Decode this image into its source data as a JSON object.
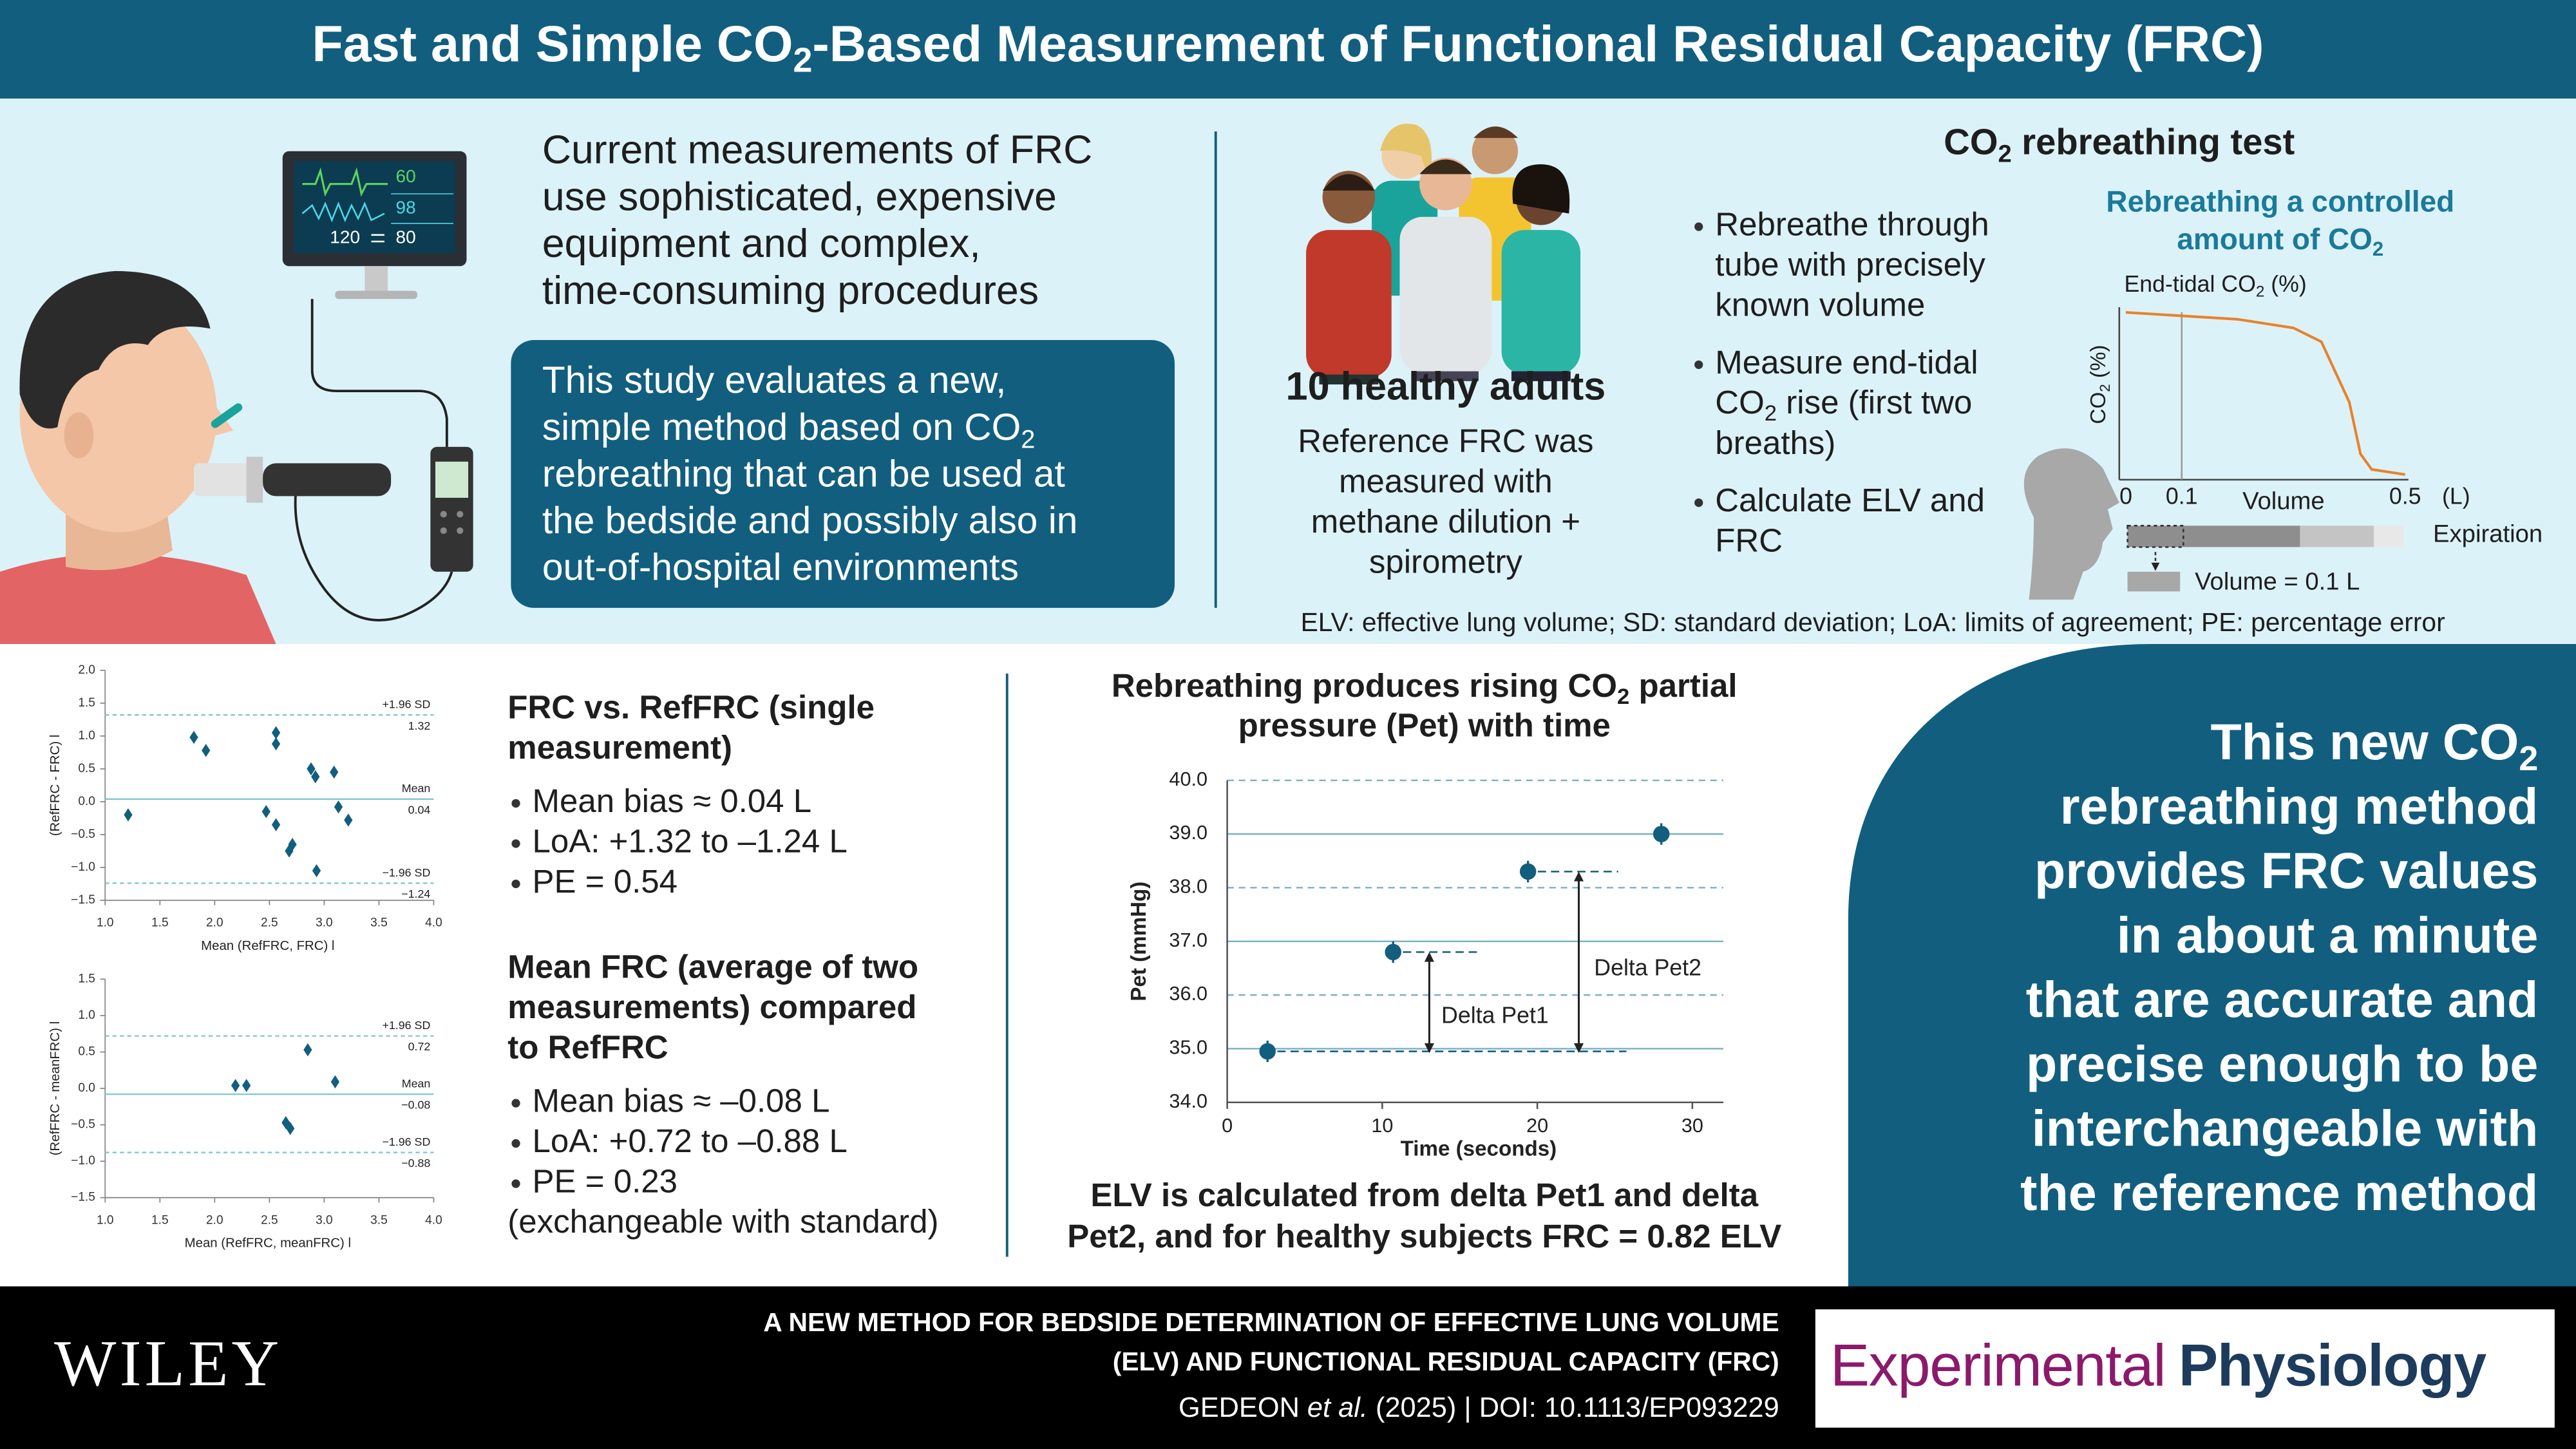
{
  "header": {
    "title": [
      "Fast and Simple CO",
      "2",
      "-Based Measurement of Functional Residual Capacity (FRC)"
    ]
  },
  "intro": {
    "problem": [
      "Current measurements of FRC",
      "use sophisticated, expensive",
      "equipment and complex,",
      "time-consuming procedures"
    ],
    "study": [
      "This study evaluates a new,",
      [
        "simple method based on CO",
        "2"
      ],
      "rebreathing that can be used at",
      "the bedside and possibly also in",
      "out-of-hospital environments"
    ]
  },
  "monitor": [
    "60",
    "98",
    "120",
    "80"
  ],
  "participants": {
    "title": "10 healthy adults",
    "text": [
      "Reference FRC was",
      "measured with",
      "methane dilution +",
      "spirometry"
    ]
  },
  "rebreathing_test": {
    "title": [
      "CO",
      "2",
      " rebreathing test"
    ],
    "bullets": [
      [
        "Rebreathe through",
        "tube with precisely",
        "known volume"
      ],
      [
        "Measure end-tidal",
        [
          "CO",
          "2",
          " rise (first two"
        ],
        "breaths)"
      ],
      [
        "Calculate ELV and",
        "FRC"
      ]
    ]
  },
  "co2_curve": {
    "title": [
      "Rebreathing a controlled",
      [
        "amount of CO",
        "2"
      ]
    ],
    "chart_title": [
      "End-tidal CO",
      "2",
      " (%)"
    ],
    "y_label": [
      "CO",
      "2",
      " (%)"
    ],
    "x_label": "Volume",
    "x_unit": "(L)",
    "x": [
      0,
      0.1,
      0.2,
      0.3,
      0.35,
      0.4,
      0.42,
      0.44,
      0.5
    ],
    "values": [
      97,
      95,
      93,
      88,
      80,
      45,
      15,
      6,
      3
    ],
    "xlim": [
      0,
      0.5
    ],
    "ylim": [
      0,
      100
    ],
    "xticks": [
      0,
      0.1,
      0.5
    ],
    "color": "#e8822a",
    "expiration": "Expiration",
    "volume_note": "Volume = 0.1 L"
  },
  "abbreviations": "ELV: effective lung volume; SD: standard deviation; LoA: limits of agreement; PE: percentage error",
  "bland_altman": [
    {
      "y_label": "(RefFRC - FRC) l",
      "x_label": "Mean (RefFRC, FRC) l",
      "x": [
        1.21,
        1.81,
        1.92,
        2.56,
        2.56,
        2.47,
        2.56,
        2.68,
        2.71,
        2.88,
        2.92,
        3.09,
        3.13,
        3.22,
        2.93
      ],
      "y": [
        -0.2,
        0.98,
        0.78,
        1.05,
        0.88,
        -0.15,
        -0.35,
        -0.75,
        -0.65,
        0.5,
        0.38,
        0.45,
        -0.08,
        -0.28,
        -1.05
      ],
      "xlim": [
        1,
        4
      ],
      "ylim": [
        -1.5,
        2
      ],
      "xticks": [
        {
          "value": 1,
          "label": "1.0"
        },
        1.5,
        {
          "value": 2,
          "label": "2.0"
        },
        2.5,
        {
          "value": 3,
          "label": "3.0"
        },
        3.5,
        {
          "value": 4,
          "label": "4.0"
        }
      ],
      "yticks": [
        {
          "value": 2,
          "label": "2.0"
        },
        1.5,
        {
          "value": 1,
          "label": "1.0"
        },
        0.5,
        {
          "value": 0,
          "label": "0.0"
        },
        {
          "value": -0.5,
          "label": "−0.5"
        },
        {
          "value": -1,
          "label": "−1.0"
        },
        {
          "value": -1.5,
          "label": "−1.5"
        }
      ],
      "lines": [
        {
          "name": "+1.96 SD",
          "value": 1.32,
          "dashed": true
        },
        {
          "name": "Mean",
          "value": 0.04,
          "dashed": false
        },
        {
          "name": "−1.96 SD",
          "value": -1.24,
          "label": "−1.24",
          "dashed": true
        }
      ],
      "color": "#125e7f"
    },
    {
      "y_label": "(RefFRC - meanFRC) l",
      "x_label": "Mean (RefFRC, meanFRC) l",
      "x": [
        2.19,
        2.29,
        2.85,
        3.1,
        2.65,
        2.69
      ],
      "y": [
        0.04,
        0.04,
        0.53,
        0.09,
        -0.47,
        -0.55
      ],
      "xlim": [
        1,
        4
      ],
      "ylim": [
        -1.5,
        1.5
      ],
      "xticks": [
        {
          "value": 1,
          "label": "1.0"
        },
        1.5,
        {
          "value": 2,
          "label": "2.0"
        },
        2.5,
        {
          "value": 3,
          "label": "3.0"
        },
        3.5,
        {
          "value": 4,
          "label": "4.0"
        }
      ],
      "yticks": [
        1.5,
        {
          "value": 1,
          "label": "1.0"
        },
        0.5,
        {
          "value": 0,
          "label": "0.0"
        },
        {
          "value": -0.5,
          "label": "−0.5"
        },
        {
          "value": -1,
          "label": "−1.0"
        },
        {
          "value": -1.5,
          "label": "−1.5"
        }
      ],
      "lines": [
        {
          "name": "+1.96 SD",
          "value": 0.72,
          "dashed": true
        },
        {
          "name": "Mean",
          "value": -0.08,
          "label": "−0.08",
          "dashed": false
        },
        {
          "name": "−1.96 SD",
          "value": -0.88,
          "label": "−0.88",
          "dashed": true
        }
      ],
      "color": "#125e7f"
    }
  ],
  "summaries": [
    {
      "title_lines": [
        "FRC vs. RefFRC (single",
        "measurement)"
      ],
      "bullets": [
        "Mean bias ≈ 0.04 L",
        "LoA: +1.32 to –1.24 L",
        "PE = 0.54"
      ]
    },
    {
      "title_lines": [
        "Mean FRC (average of two",
        "measurements) compared",
        "to RefFRC"
      ],
      "bullets": [
        "Mean bias ≈ –0.08 L",
        "LoA: +0.72 to –0.88 L",
        "PE = 0.23"
      ],
      "note": "(exchangeable with standard)"
    }
  ],
  "pet_chart": {
    "title_lines": [
      [
        "Rebreathing produces rising CO",
        "2",
        " partial"
      ],
      "pressure (Pet) with time"
    ],
    "y_label": "Pet (mmHg)",
    "x_label": "Time (seconds)",
    "x": [
      2.6,
      10.7,
      19.4,
      28
    ],
    "values": [
      34.95,
      36.8,
      38.3,
      39.0
    ],
    "errors": [
      0.2,
      0.2,
      0.2,
      0.2
    ],
    "xlim": [
      0,
      32
    ],
    "ylim": [
      34,
      40
    ],
    "xticks": [
      0,
      10,
      20,
      30
    ],
    "yticks": [
      {
        "value": 40,
        "label": "40.0"
      },
      {
        "value": 39,
        "label": "39.0"
      },
      {
        "value": 38,
        "label": "38.0"
      },
      {
        "value": 37,
        "label": "37.0"
      },
      {
        "value": 36,
        "label": "36.0"
      },
      {
        "value": 35,
        "label": "35.0"
      },
      {
        "value": 34,
        "label": "34.0"
      }
    ],
    "grid_dashed": [
      true,
      false,
      true,
      false,
      true,
      false,
      false
    ],
    "color": "#125e7f",
    "delta_labels": [
      "Delta Pet1",
      "Delta Pet2"
    ],
    "caption": [
      "ELV is calculated from delta Pet1 and delta",
      "Pet2, and for healthy subjects FRC = 0.82 ELV"
    ]
  },
  "conclusion": [
    [
      "This new CO",
      "2"
    ],
    "rebreathing method",
    "provides FRC values",
    "in about a minute",
    "that are accurate and",
    "precise enough to be",
    "interchangeable with",
    "the reference method"
  ],
  "footer": {
    "publisher": "WILEY",
    "article_title": [
      "A NEW METHOD FOR BEDSIDE DETERMINATION OF EFFECTIVE LUNG VOLUME",
      "(ELV) AND FUNCTIONAL RESIDUAL CAPACITY (FRC)"
    ],
    "citation": [
      "GEDEON ",
      "et al.",
      " (2025) | DOI: 10.1113/EP093229"
    ],
    "journal": [
      "Experimental",
      "Physiology"
    ]
  }
}
